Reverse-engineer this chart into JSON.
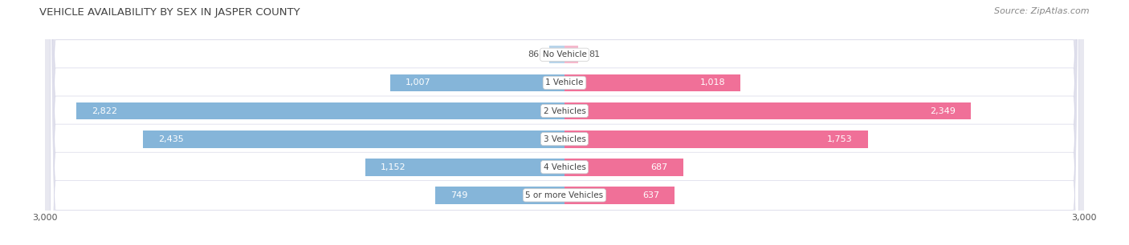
{
  "title": "VEHICLE AVAILABILITY BY SEX IN JASPER COUNTY",
  "source": "Source: ZipAtlas.com",
  "categories": [
    "No Vehicle",
    "1 Vehicle",
    "2 Vehicles",
    "3 Vehicles",
    "4 Vehicles",
    "5 or more Vehicles"
  ],
  "male_values": [
    86,
    1007,
    2822,
    2435,
    1152,
    749
  ],
  "female_values": [
    81,
    1018,
    2349,
    1753,
    687,
    637
  ],
  "male_color_small": "#b8d4ea",
  "male_color_large": "#85b5d9",
  "female_color_small": "#f5b8cc",
  "female_color_large": "#f07098",
  "xlim": 3000,
  "title_fontsize": 9.5,
  "source_fontsize": 8,
  "label_fontsize": 8,
  "category_fontsize": 7.5,
  "tick_fontsize": 8,
  "legend_fontsize": 8,
  "fig_bg_color": "#ffffff",
  "ax_bg_color": "#e8e8f0",
  "row_bg_color": "#f4f4f8",
  "row_pill_color": "#f8f8fc"
}
